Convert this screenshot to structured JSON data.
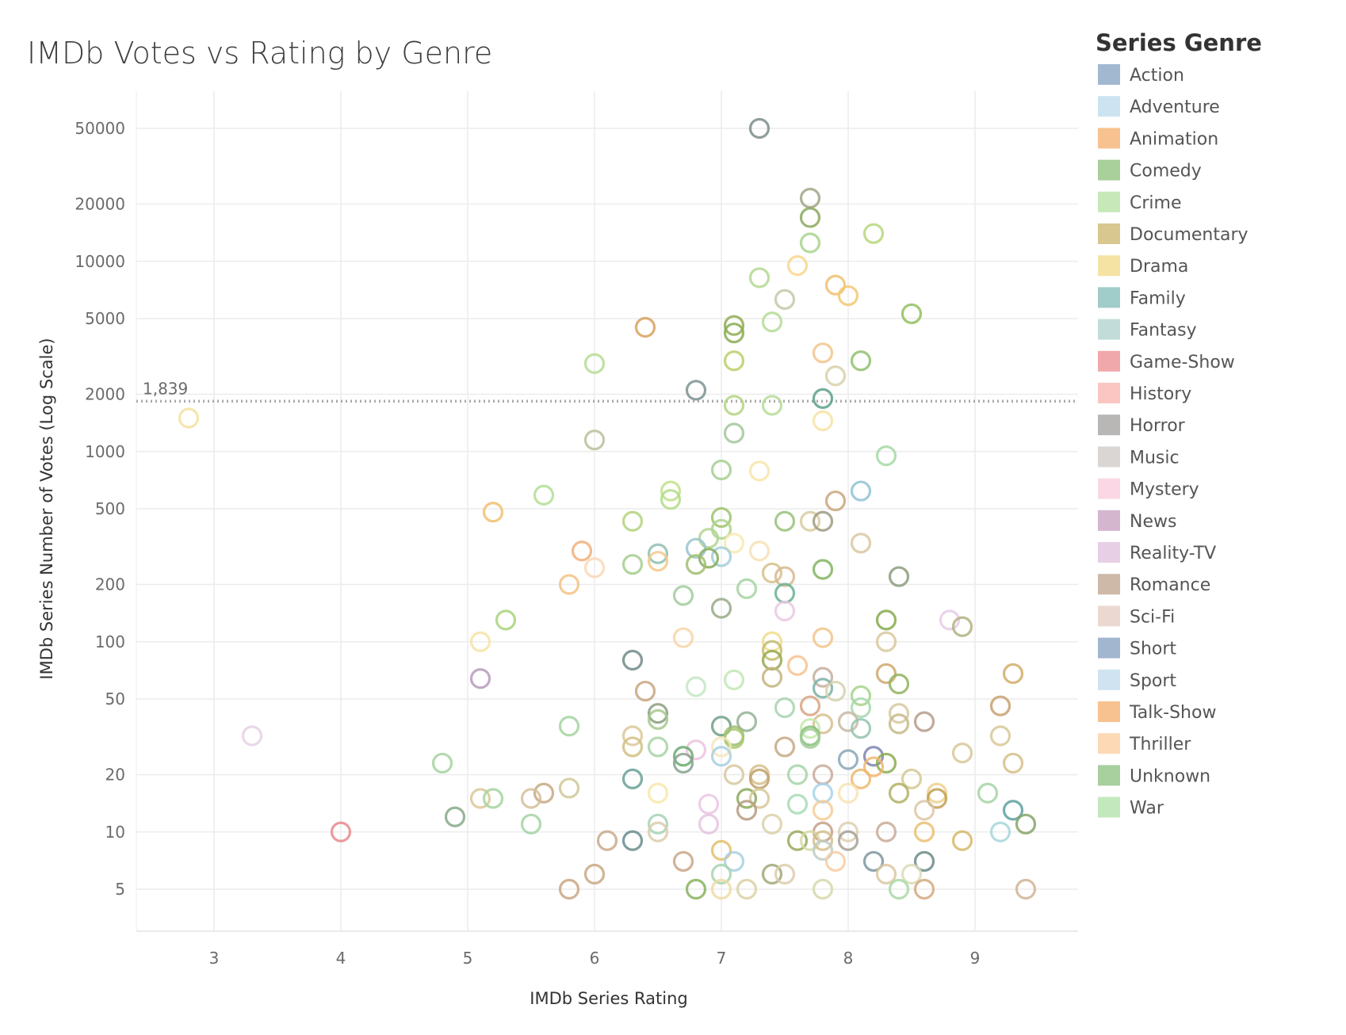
{
  "chart_data": {
    "type": "scatter",
    "title": "IMDb Votes vs Rating by Genre",
    "xlabel": "IMDb Series Rating",
    "ylabel": "IMDb Series Number of Votes (Log Scale)",
    "x_scale": "linear",
    "y_scale": "log",
    "xlim": [
      2.4,
      9.8
    ],
    "ylim": [
      2.6,
      80000
    ],
    "x_ticks": [
      3,
      4,
      5,
      6,
      7,
      8,
      9
    ],
    "y_ticks": [
      5,
      10,
      20,
      50,
      100,
      200,
      500,
      1000,
      2000,
      5000,
      10000,
      20000,
      50000
    ],
    "reference_line": {
      "value": 1839,
      "label": "1,839",
      "style": "dotted"
    },
    "legend": {
      "title": "Series Genre",
      "position": "right",
      "entries": [
        {
          "name": "Action",
          "color": "#a2b8d0"
        },
        {
          "name": "Adventure",
          "color": "#cde3f2"
        },
        {
          "name": "Animation",
          "color": "#f7c28f"
        },
        {
          "name": "Comedy",
          "color": "#a9cf9a"
        },
        {
          "name": "Crime",
          "color": "#c7e8b9"
        },
        {
          "name": "Documentary",
          "color": "#d9c790"
        },
        {
          "name": "Drama",
          "color": "#f5e3a4"
        },
        {
          "name": "Family",
          "color": "#a0ccc9"
        },
        {
          "name": "Fantasy",
          "color": "#c2ddd9"
        },
        {
          "name": "Game-Show",
          "color": "#f1a8aa"
        },
        {
          "name": "History",
          "color": "#fbc6c2"
        },
        {
          "name": "Horror",
          "color": "#b9b6b6"
        },
        {
          "name": "Music",
          "color": "#dad6d4"
        },
        {
          "name": "Mystery",
          "color": "#fbd7e5"
        },
        {
          "name": "News",
          "color": "#d4b6ce"
        },
        {
          "name": "Reality-TV",
          "color": "#e7cfe5"
        },
        {
          "name": "Romance",
          "color": "#ceb8a8"
        },
        {
          "name": "Sci-Fi",
          "color": "#ebd9d1"
        },
        {
          "name": "Short",
          "color": "#a2b6cf"
        },
        {
          "name": "Sport",
          "color": "#cfe3f1"
        },
        {
          "name": "Talk-Show",
          "color": "#f7c28f"
        },
        {
          "name": "Thriller",
          "color": "#fdd9b5"
        },
        {
          "name": "Unknown",
          "color": "#a8cf9e"
        },
        {
          "name": "War",
          "color": "#c4e8bd"
        }
      ]
    },
    "points": [
      {
        "x": 7.3,
        "y": 50000,
        "c": "#7d8c8c"
      },
      {
        "x": 7.7,
        "y": 21500,
        "c": "#a2a586"
      },
      {
        "x": 7.7,
        "y": 17000,
        "c": "#8aa85d"
      },
      {
        "x": 8.2,
        "y": 14000,
        "c": "#b7d77e"
      },
      {
        "x": 7.7,
        "y": 12500,
        "c": "#a8d28e"
      },
      {
        "x": 7.6,
        "y": 9500,
        "c": "#f8d68c"
      },
      {
        "x": 7.3,
        "y": 8200,
        "c": "#b3d890"
      },
      {
        "x": 7.9,
        "y": 7500,
        "c": "#f0c070"
      },
      {
        "x": 8.0,
        "y": 6600,
        "c": "#f3c872"
      },
      {
        "x": 7.5,
        "y": 6300,
        "c": "#c6c8a8"
      },
      {
        "x": 8.5,
        "y": 5300,
        "c": "#8fbf5e"
      },
      {
        "x": 7.4,
        "y": 4800,
        "c": "#b5dc96"
      },
      {
        "x": 7.1,
        "y": 4600,
        "c": "#92ab55"
      },
      {
        "x": 6.4,
        "y": 4500,
        "c": "#d9a15e"
      },
      {
        "x": 7.1,
        "y": 4200,
        "c": "#8aab52"
      },
      {
        "x": 7.8,
        "y": 3300,
        "c": "#f2c68c"
      },
      {
        "x": 6.0,
        "y": 2900,
        "c": "#b6dc94"
      },
      {
        "x": 7.1,
        "y": 3000,
        "c": "#b8d06a"
      },
      {
        "x": 8.1,
        "y": 3000,
        "c": "#91bf6e"
      },
      {
        "x": 7.9,
        "y": 2500,
        "c": "#d9d0a8"
      },
      {
        "x": 6.8,
        "y": 2100,
        "c": "#7d9090"
      },
      {
        "x": 7.8,
        "y": 1900,
        "c": "#5ea088"
      },
      {
        "x": 7.1,
        "y": 1750,
        "c": "#b3d480"
      },
      {
        "x": 7.4,
        "y": 1750,
        "c": "#b6dc96"
      },
      {
        "x": 2.8,
        "y": 1500,
        "c": "#f5e0a0"
      },
      {
        "x": 7.8,
        "y": 1450,
        "c": "#f6e3a6"
      },
      {
        "x": 7.1,
        "y": 1250,
        "c": "#a3c79c"
      },
      {
        "x": 6.0,
        "y": 1150,
        "c": "#b7c29a"
      },
      {
        "x": 8.3,
        "y": 950,
        "c": "#a8d8a4"
      },
      {
        "x": 7.0,
        "y": 800,
        "c": "#a7cf92"
      },
      {
        "x": 7.3,
        "y": 790,
        "c": "#f7e5a8"
      },
      {
        "x": 8.1,
        "y": 620,
        "c": "#8fc2d6"
      },
      {
        "x": 6.6,
        "y": 620,
        "c": "#bfe08a"
      },
      {
        "x": 5.6,
        "y": 590,
        "c": "#b3de96"
      },
      {
        "x": 6.6,
        "y": 560,
        "c": "#b3dc86"
      },
      {
        "x": 7.9,
        "y": 550,
        "c": "#c9a77e"
      },
      {
        "x": 5.2,
        "y": 480,
        "c": "#f2c070"
      },
      {
        "x": 7.0,
        "y": 450,
        "c": "#9fc36c"
      },
      {
        "x": 6.3,
        "y": 430,
        "c": "#b4d27e"
      },
      {
        "x": 7.5,
        "y": 430,
        "c": "#98c27a"
      },
      {
        "x": 7.7,
        "y": 430,
        "c": "#d6cca0"
      },
      {
        "x": 7.8,
        "y": 430,
        "c": "#9e9a80"
      },
      {
        "x": 7.0,
        "y": 390,
        "c": "#aed48e"
      },
      {
        "x": 6.9,
        "y": 350,
        "c": "#b2d492"
      },
      {
        "x": 7.1,
        "y": 330,
        "c": "#f8e9b2"
      },
      {
        "x": 8.1,
        "y": 330,
        "c": "#d8c8a0"
      },
      {
        "x": 6.8,
        "y": 310,
        "c": "#9ac4cf"
      },
      {
        "x": 5.9,
        "y": 300,
        "c": "#f2b07a"
      },
      {
        "x": 7.3,
        "y": 300,
        "c": "#f7e0b4"
      },
      {
        "x": 6.5,
        "y": 290,
        "c": "#8fbfb0"
      },
      {
        "x": 7.0,
        "y": 280,
        "c": "#a0cfd8"
      },
      {
        "x": 6.9,
        "y": 275,
        "c": "#8aac5e"
      },
      {
        "x": 6.5,
        "y": 265,
        "c": "#f4c888"
      },
      {
        "x": 6.3,
        "y": 255,
        "c": "#a6cd8e"
      },
      {
        "x": 6.8,
        "y": 255,
        "c": "#a0c070"
      },
      {
        "x": 6.0,
        "y": 245,
        "c": "#f9d8b6"
      },
      {
        "x": 7.8,
        "y": 240,
        "c": "#82b462"
      },
      {
        "x": 7.4,
        "y": 230,
        "c": "#d7c08c"
      },
      {
        "x": 7.5,
        "y": 220,
        "c": "#d6b890"
      },
      {
        "x": 8.4,
        "y": 220,
        "c": "#8a9c7e"
      },
      {
        "x": 5.8,
        "y": 200,
        "c": "#f4c282"
      },
      {
        "x": 7.2,
        "y": 190,
        "c": "#a6d4a2"
      },
      {
        "x": 6.7,
        "y": 175,
        "c": "#a0cc9e"
      },
      {
        "x": 7.5,
        "y": 180,
        "c": "#6ab292"
      },
      {
        "x": 7.0,
        "y": 150,
        "c": "#97aa86"
      },
      {
        "x": 7.5,
        "y": 145,
        "c": "#ebc8e2"
      },
      {
        "x": 5.3,
        "y": 130,
        "c": "#a8d47e"
      },
      {
        "x": 8.3,
        "y": 130,
        "c": "#86aa4e"
      },
      {
        "x": 8.8,
        "y": 130,
        "c": "#e6cde6"
      },
      {
        "x": 8.9,
        "y": 120,
        "c": "#b3b180"
      },
      {
        "x": 7.8,
        "y": 105,
        "c": "#f2c48c"
      },
      {
        "x": 6.7,
        "y": 105,
        "c": "#f7d6a8"
      },
      {
        "x": 5.1,
        "y": 100,
        "c": "#f7e3a6"
      },
      {
        "x": 7.4,
        "y": 100,
        "c": "#f1dc8c"
      },
      {
        "x": 8.3,
        "y": 100,
        "c": "#d9c89e"
      },
      {
        "x": 7.4,
        "y": 90,
        "c": "#c3bc6e"
      },
      {
        "x": 6.3,
        "y": 80,
        "c": "#6f8a88"
      },
      {
        "x": 7.4,
        "y": 80,
        "c": "#95a94c"
      },
      {
        "x": 7.6,
        "y": 75,
        "c": "#f6c38e"
      },
      {
        "x": 8.3,
        "y": 68,
        "c": "#cfa86c"
      },
      {
        "x": 9.3,
        "y": 68,
        "c": "#d2ac68"
      },
      {
        "x": 7.4,
        "y": 65,
        "c": "#c4b47e"
      },
      {
        "x": 7.8,
        "y": 65,
        "c": "#c6aea0"
      },
      {
        "x": 5.1,
        "y": 64,
        "c": "#b89abc"
      },
      {
        "x": 7.1,
        "y": 63,
        "c": "#c2e6b6"
      },
      {
        "x": 8.4,
        "y": 60,
        "c": "#90b45e"
      },
      {
        "x": 6.8,
        "y": 58,
        "c": "#c5e6c4"
      },
      {
        "x": 7.8,
        "y": 57,
        "c": "#7ab2a6"
      },
      {
        "x": 6.4,
        "y": 55,
        "c": "#c8a680"
      },
      {
        "x": 7.9,
        "y": 55,
        "c": "#d6d2b0"
      },
      {
        "x": 8.1,
        "y": 52,
        "c": "#a6d489"
      },
      {
        "x": 7.7,
        "y": 46,
        "c": "#d8a480"
      },
      {
        "x": 9.2,
        "y": 46,
        "c": "#c8a070"
      },
      {
        "x": 7.5,
        "y": 45,
        "c": "#a8d4b0"
      },
      {
        "x": 8.1,
        "y": 45,
        "c": "#a8d8b0"
      },
      {
        "x": 6.5,
        "y": 42,
        "c": "#8a9e7e"
      },
      {
        "x": 8.4,
        "y": 42,
        "c": "#d6c8a0"
      },
      {
        "x": 6.5,
        "y": 39,
        "c": "#a4c88e"
      },
      {
        "x": 7.2,
        "y": 38,
        "c": "#94b294"
      },
      {
        "x": 7.8,
        "y": 37,
        "c": "#d6c08e"
      },
      {
        "x": 8.0,
        "y": 38,
        "c": "#c8b8a2"
      },
      {
        "x": 8.4,
        "y": 37,
        "c": "#c6b888"
      },
      {
        "x": 8.6,
        "y": 38,
        "c": "#b69b88"
      },
      {
        "x": 7.0,
        "y": 36,
        "c": "#6ea086"
      },
      {
        "x": 5.8,
        "y": 36,
        "c": "#a6d4a0"
      },
      {
        "x": 8.1,
        "y": 35,
        "c": "#94c6ae"
      },
      {
        "x": 7.7,
        "y": 35,
        "c": "#c6e8ae"
      },
      {
        "x": 6.3,
        "y": 32,
        "c": "#dcc89a"
      },
      {
        "x": 7.1,
        "y": 32,
        "c": "#9cbc70"
      },
      {
        "x": 7.7,
        "y": 32,
        "c": "#86c07a"
      },
      {
        "x": 3.3,
        "y": 32,
        "c": "#e6d0e6"
      },
      {
        "x": 9.2,
        "y": 32,
        "c": "#d8c898"
      },
      {
        "x": 7.1,
        "y": 31,
        "c": "#a8c870"
      },
      {
        "x": 7.7,
        "y": 31,
        "c": "#a2cc98"
      },
      {
        "x": 6.3,
        "y": 28,
        "c": "#d0c084"
      },
      {
        "x": 6.5,
        "y": 28,
        "c": "#a8d4a4"
      },
      {
        "x": 7.0,
        "y": 28,
        "c": "#f6e6ba"
      },
      {
        "x": 7.5,
        "y": 28,
        "c": "#c6a884"
      },
      {
        "x": 6.8,
        "y": 27,
        "c": "#ecc4e0"
      },
      {
        "x": 8.9,
        "y": 26,
        "c": "#d6c896"
      },
      {
        "x": 6.7,
        "y": 25,
        "c": "#6aaa6e"
      },
      {
        "x": 7.0,
        "y": 25,
        "c": "#a8cfe0"
      },
      {
        "x": 8.2,
        "y": 25,
        "c": "#7c84b0"
      },
      {
        "x": 8.0,
        "y": 24,
        "c": "#8aa6b8"
      },
      {
        "x": 6.7,
        "y": 23,
        "c": "#86a28e"
      },
      {
        "x": 4.8,
        "y": 23,
        "c": "#a4d4a0"
      },
      {
        "x": 8.3,
        "y": 23,
        "c": "#8cab4e"
      },
      {
        "x": 9.3,
        "y": 23,
        "c": "#d6c088"
      },
      {
        "x": 8.2,
        "y": 22,
        "c": "#f3b56c"
      },
      {
        "x": 7.8,
        "y": 20,
        "c": "#c8aa9a"
      },
      {
        "x": 7.1,
        "y": 20,
        "c": "#d8c8a0"
      },
      {
        "x": 7.3,
        "y": 20,
        "c": "#d6c08a"
      },
      {
        "x": 8.5,
        "y": 19,
        "c": "#d6c894"
      },
      {
        "x": 6.3,
        "y": 19,
        "c": "#6aa098"
      },
      {
        "x": 7.6,
        "y": 20,
        "c": "#a6d4a8"
      },
      {
        "x": 8.1,
        "y": 19,
        "c": "#ecb870"
      },
      {
        "x": 7.3,
        "y": 19,
        "c": "#c0a06a"
      },
      {
        "x": 5.8,
        "y": 17,
        "c": "#d0c898"
      },
      {
        "x": 8.0,
        "y": 16,
        "c": "#f8e3b2"
      },
      {
        "x": 6.5,
        "y": 16,
        "c": "#f8e7a8"
      },
      {
        "x": 7.8,
        "y": 16,
        "c": "#a8d2e6"
      },
      {
        "x": 8.4,
        "y": 16,
        "c": "#b2b064"
      },
      {
        "x": 8.7,
        "y": 16,
        "c": "#ecd08e"
      },
      {
        "x": 9.1,
        "y": 16,
        "c": "#a6d4a6"
      },
      {
        "x": 5.6,
        "y": 16,
        "c": "#c6a884"
      },
      {
        "x": 5.1,
        "y": 15,
        "c": "#dcc898"
      },
      {
        "x": 5.2,
        "y": 15,
        "c": "#a6d4a0"
      },
      {
        "x": 5.5,
        "y": 15,
        "c": "#d6c09a"
      },
      {
        "x": 7.2,
        "y": 15,
        "c": "#8aaa5a"
      },
      {
        "x": 7.3,
        "y": 15,
        "c": "#d6c896"
      },
      {
        "x": 8.7,
        "y": 15,
        "c": "#c0a050"
      },
      {
        "x": 6.9,
        "y": 14,
        "c": "#ecc6e4"
      },
      {
        "x": 7.6,
        "y": 14,
        "c": "#a8dab6"
      },
      {
        "x": 8.6,
        "y": 13,
        "c": "#dcc8a8"
      },
      {
        "x": 7.2,
        "y": 13,
        "c": "#b89a80"
      },
      {
        "x": 7.8,
        "y": 13,
        "c": "#f4cc96"
      },
      {
        "x": 9.3,
        "y": 13,
        "c": "#5ea0a0"
      },
      {
        "x": 4.9,
        "y": 12,
        "c": "#86a88a"
      },
      {
        "x": 5.5,
        "y": 11,
        "c": "#a4d4a4"
      },
      {
        "x": 6.5,
        "y": 11,
        "c": "#a6d4b6"
      },
      {
        "x": 6.9,
        "y": 11,
        "c": "#e4c6e2"
      },
      {
        "x": 7.4,
        "y": 11,
        "c": "#dcd0a8"
      },
      {
        "x": 9.4,
        "y": 11,
        "c": "#86a466"
      },
      {
        "x": 4.0,
        "y": 10,
        "c": "#e88a8e"
      },
      {
        "x": 6.5,
        "y": 10,
        "c": "#dcccac"
      },
      {
        "x": 7.8,
        "y": 10,
        "c": "#c6a088"
      },
      {
        "x": 8.0,
        "y": 10,
        "c": "#dcd0b0"
      },
      {
        "x": 8.3,
        "y": 10,
        "c": "#c8aa98"
      },
      {
        "x": 8.6,
        "y": 10,
        "c": "#ebc070"
      },
      {
        "x": 9.2,
        "y": 10,
        "c": "#a8d6dc"
      },
      {
        "x": 6.1,
        "y": 9,
        "c": "#c8aa8c"
      },
      {
        "x": 6.3,
        "y": 9,
        "c": "#6a8c8c"
      },
      {
        "x": 7.6,
        "y": 9,
        "c": "#98aa5c"
      },
      {
        "x": 7.7,
        "y": 9,
        "c": "#d6dca8"
      },
      {
        "x": 7.8,
        "y": 9,
        "c": "#d6c08a"
      },
      {
        "x": 8.0,
        "y": 9,
        "c": "#a6a096"
      },
      {
        "x": 8.9,
        "y": 9,
        "c": "#d8b86a"
      },
      {
        "x": 7.8,
        "y": 8,
        "c": "#c0ccc4"
      },
      {
        "x": 7.0,
        "y": 8,
        "c": "#e4c06a"
      },
      {
        "x": 6.7,
        "y": 7,
        "c": "#caa686"
      },
      {
        "x": 7.1,
        "y": 7,
        "c": "#a8d0e0"
      },
      {
        "x": 7.9,
        "y": 7,
        "c": "#f7cca4"
      },
      {
        "x": 8.2,
        "y": 7,
        "c": "#7e96a0"
      },
      {
        "x": 8.6,
        "y": 7,
        "c": "#6a8a88"
      },
      {
        "x": 6.0,
        "y": 6,
        "c": "#c8a884"
      },
      {
        "x": 7.0,
        "y": 6,
        "c": "#a8d4b0"
      },
      {
        "x": 7.4,
        "y": 6,
        "c": "#a0a876"
      },
      {
        "x": 7.5,
        "y": 6,
        "c": "#dcccac"
      },
      {
        "x": 8.3,
        "y": 6,
        "c": "#dcc8a0"
      },
      {
        "x": 8.5,
        "y": 6,
        "c": "#dcdcb8"
      },
      {
        "x": 5.8,
        "y": 5,
        "c": "#caa682"
      },
      {
        "x": 6.8,
        "y": 5,
        "c": "#88b25e"
      },
      {
        "x": 7.0,
        "y": 5,
        "c": "#eedaa4"
      },
      {
        "x": 7.2,
        "y": 5,
        "c": "#dcd0a4"
      },
      {
        "x": 7.8,
        "y": 5,
        "c": "#d6d8ac"
      },
      {
        "x": 8.4,
        "y": 5,
        "c": "#a8d8a8"
      },
      {
        "x": 8.6,
        "y": 5,
        "c": "#d2aa80"
      },
      {
        "x": 9.4,
        "y": 5,
        "c": "#d2b496"
      }
    ]
  }
}
